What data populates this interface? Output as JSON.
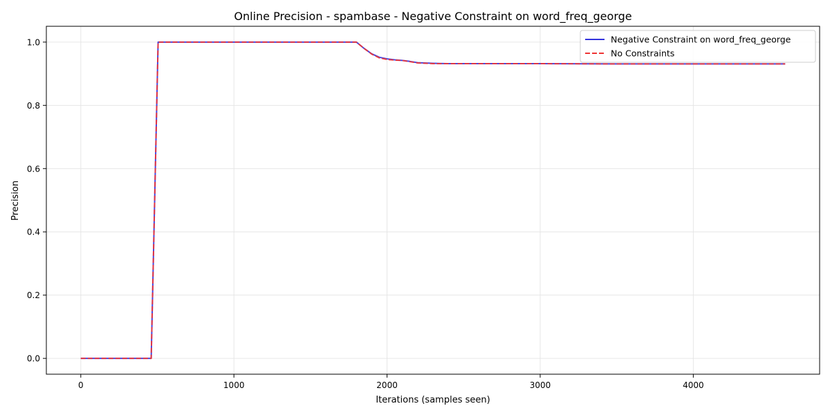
{
  "chart_data": {
    "type": "line",
    "title": "Online Precision - spambase - Negative Constraint on word_freq_george",
    "xlabel": "Iterations (samples seen)",
    "ylabel": "Precision",
    "xlim": [
      -225,
      4825
    ],
    "ylim": [
      -0.05,
      1.05
    ],
    "xticks": [
      0,
      1000,
      2000,
      3000,
      4000
    ],
    "yticks": [
      0.0,
      0.2,
      0.4,
      0.6,
      0.8,
      1.0
    ],
    "ytick_labels": [
      "0.0",
      "0.2",
      "0.4",
      "0.6",
      "0.8",
      "1.0"
    ],
    "grid": true,
    "legend_position": "top-right",
    "series": [
      {
        "name": "Negative Constraint on word_freq_george",
        "color": "#3333dd",
        "style": "solid",
        "x": [
          0,
          460,
          505,
          1800,
          1850,
          1900,
          1950,
          2000,
          2050,
          2100,
          2150,
          2200,
          2300,
          2400,
          2600,
          3000,
          3500,
          4000,
          4600
        ],
        "y": [
          0.0,
          0.0,
          1.0,
          1.0,
          0.98,
          0.963,
          0.952,
          0.947,
          0.944,
          0.942,
          0.939,
          0.935,
          0.933,
          0.932,
          0.932,
          0.932,
          0.931,
          0.931,
          0.931
        ]
      },
      {
        "name": "No Constraints",
        "color": "#ee3333",
        "style": "dashed",
        "x": [
          0,
          460,
          505,
          1800,
          1850,
          1900,
          1950,
          2000,
          2050,
          2100,
          2150,
          2200,
          2300,
          2400,
          2600,
          3000,
          3500,
          4000,
          4600
        ],
        "y": [
          0.0,
          0.0,
          1.0,
          1.0,
          0.98,
          0.962,
          0.95,
          0.945,
          0.943,
          0.942,
          0.938,
          0.934,
          0.932,
          0.932,
          0.932,
          0.932,
          0.931,
          0.931,
          0.931
        ]
      }
    ]
  }
}
